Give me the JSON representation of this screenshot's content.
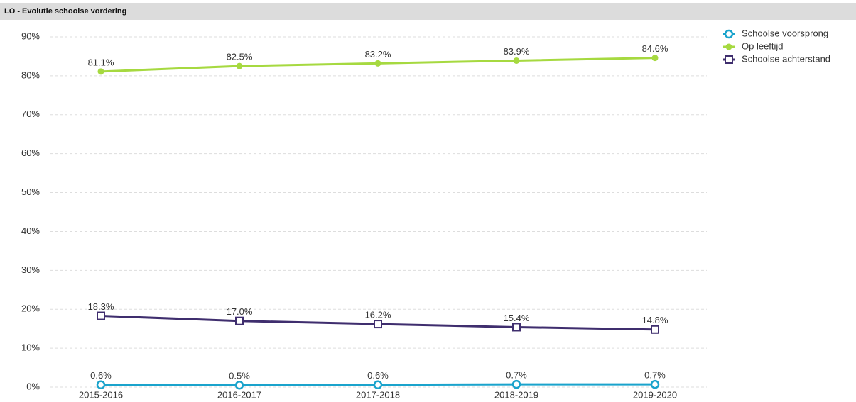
{
  "chart_data": {
    "type": "line",
    "title": "LO - Evolutie schoolse vordering",
    "categories": [
      "2015-2016",
      "2016-2017",
      "2017-2018",
      "2018-2019",
      "2019-2020"
    ],
    "series": [
      {
        "name": "Schoolse voorsprong",
        "color": "#1aa3cc",
        "marker": "circle-open",
        "values": [
          0.6,
          0.5,
          0.6,
          0.7,
          0.7
        ],
        "value_labels": [
          "0.6%",
          "0.5%",
          "0.6%",
          "0.7%",
          "0.7%"
        ]
      },
      {
        "name": "Op leeftijd",
        "color": "#a6d940",
        "marker": "circle",
        "values": [
          81.1,
          82.5,
          83.2,
          83.9,
          84.6
        ],
        "value_labels": [
          "81.1%",
          "82.5%",
          "83.2%",
          "83.9%",
          "84.6%"
        ]
      },
      {
        "name": "Schoolse achterstand",
        "color": "#3f2e6e",
        "marker": "square-open",
        "values": [
          18.3,
          17.0,
          16.2,
          15.4,
          14.8
        ],
        "value_labels": [
          "18.3%",
          "17.0%",
          "16.2%",
          "15.4%",
          "14.8%"
        ]
      }
    ],
    "ylim": [
      0,
      90
    ],
    "yticks": [
      {
        "value": 0,
        "label": "0%"
      },
      {
        "value": 10,
        "label": "10%"
      },
      {
        "value": 20,
        "label": "20%"
      },
      {
        "value": 30,
        "label": "30%"
      },
      {
        "value": 40,
        "label": "40%"
      },
      {
        "value": 50,
        "label": "50%"
      },
      {
        "value": 60,
        "label": "60%"
      },
      {
        "value": 70,
        "label": "70%"
      },
      {
        "value": 80,
        "label": "80%"
      },
      {
        "value": 90,
        "label": "90%"
      }
    ],
    "grid": true,
    "legend": "top-right"
  }
}
